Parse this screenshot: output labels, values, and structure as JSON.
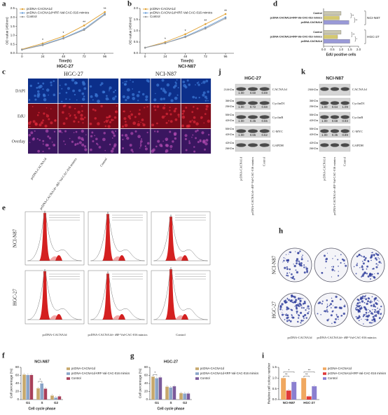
{
  "chart_data": [
    {
      "panel_label": "a",
      "type": "line",
      "title": "HGC-27",
      "x_label": "Time(h)",
      "y_label": "OD value (450nm)",
      "x": [
        0,
        24,
        48,
        72,
        96
      ],
      "xlim": [
        -6,
        106
      ],
      "xticks": [
        0,
        24,
        48,
        72,
        96
      ],
      "ylim": [
        0,
        2.5
      ],
      "yticks": [
        {
          "value": 0,
          "label": "0.0"
        },
        {
          "value": 0.5,
          "label": "0.5"
        },
        {
          "value": 1,
          "label": "1.0"
        },
        {
          "value": 1.5,
          "label": "1.5"
        },
        {
          "value": 2,
          "label": "2.0"
        },
        {
          "value": 2.5,
          "label": "2.5"
        }
      ],
      "series": [
        {
          "name": "pcDNA-CACNA1d",
          "color": "#e0a030",
          "values": [
            0.22,
            0.55,
            0.95,
            1.55,
            2.3
          ]
        },
        {
          "name": "pcDNA-CACNA1d+tRF-Val-CAC-016 mimics",
          "color": "#6a9fd8",
          "values": [
            0.2,
            0.48,
            0.85,
            1.35,
            2.2
          ]
        },
        {
          "name": "Control",
          "color": "#9a9a9a",
          "values": [
            0.2,
            0.45,
            0.82,
            1.3,
            2.15
          ]
        }
      ],
      "annotations": [
        {
          "x": 24,
          "text": "*"
        },
        {
          "x": 48,
          "text": "*"
        },
        {
          "x": 72,
          "text": "**"
        },
        {
          "x": 96,
          "text": "**"
        }
      ]
    },
    {
      "panel_label": "b",
      "type": "line",
      "title": "NCI-N87",
      "x_label": "Time(h)",
      "y_label": "OD value (450nm)",
      "x": [
        0,
        24,
        48,
        72,
        96
      ],
      "xlim": [
        -6,
        106
      ],
      "xticks": [
        0,
        24,
        48,
        72,
        96
      ],
      "ylim": [
        0,
        2
      ],
      "yticks": [
        {
          "value": 0,
          "label": "0.0"
        },
        {
          "value": 0.5,
          "label": "0.5"
        },
        {
          "value": 1,
          "label": "1.0"
        },
        {
          "value": 1.5,
          "label": "1.5"
        },
        {
          "value": 2,
          "label": "2.0"
        }
      ],
      "series": [
        {
          "name": "pcDNA-CACNA1d",
          "color": "#e0a030",
          "values": [
            0.25,
            0.5,
            0.85,
            1.3,
            1.75
          ]
        },
        {
          "name": "pcDNA-CACNA1d+tRF-Val-CAC-016 mimics",
          "color": "#6a9fd8",
          "values": [
            0.25,
            0.45,
            0.75,
            1.15,
            1.6
          ]
        },
        {
          "name": "Control",
          "color": "#9a9a9a",
          "values": [
            0.25,
            0.45,
            0.72,
            1.1,
            1.55
          ]
        }
      ],
      "annotations": [
        {
          "x": 24,
          "text": "*"
        },
        {
          "x": 48,
          "text": "*"
        },
        {
          "x": 72,
          "text": "**"
        },
        {
          "x": 96,
          "text": "**"
        }
      ]
    },
    {
      "panel_label": "d",
      "type": "hbar",
      "x_label": "EdU positive cells",
      "categories": [
        "Control",
        "pcDNA-CACNA1d+tRF-Val-CAC-016 mimics",
        "pcDNA-CACNA1d"
      ],
      "colors": [
        "#c9c7b0",
        "#d4c870",
        "#9a9ad8"
      ],
      "groups": [
        {
          "name": "NCI-N87",
          "values": [
            1.0,
            0.9,
            1.45
          ],
          "annotations": [
            "**",
            "**"
          ]
        },
        {
          "name": "HGC-27",
          "values": [
            1.0,
            0.8,
            1.5
          ],
          "annotations": [
            "**",
            "*"
          ]
        }
      ],
      "xlim": [
        0,
        2
      ],
      "xticks": [
        {
          "value": 0,
          "label": "0.0"
        },
        {
          "value": 0.5,
          "label": "0.5"
        },
        {
          "value": 1,
          "label": "1.0"
        },
        {
          "value": 1.5,
          "label": "1.5"
        },
        {
          "value": 2,
          "label": "2.0"
        }
      ]
    },
    {
      "panel_label": "f",
      "type": "grouped_bar",
      "title": "NCI-N87",
      "x_label": "Cell cycle phase",
      "y_label": "Cell percentage (%)",
      "categories": [
        "G1",
        "S",
        "G2"
      ],
      "series": [
        {
          "name": "pcDNA-CACNA1d",
          "color": "#c7a86c",
          "values": [
            62,
            28,
            10
          ]
        },
        {
          "name": "pcDNA-CACNA1d+tRF-Val-CAC-016 mimics",
          "color": "#8aa5c8",
          "values": [
            61,
            40,
            5
          ]
        },
        {
          "name": "Control",
          "color": "#a8405a",
          "values": [
            61,
            27,
            8
          ]
        }
      ],
      "ylim": [
        0,
        80
      ],
      "yticks": [
        0,
        20,
        40,
        60,
        80
      ],
      "annotations": [
        {
          "category": "S",
          "text": "*"
        }
      ]
    },
    {
      "panel_label": "g",
      "type": "grouped_bar",
      "title": "HGC-27",
      "x_label": "Cell cycle phase",
      "y_label": "Cell percentage (%)",
      "categories": [
        "G1",
        "S",
        "G2"
      ],
      "series": [
        {
          "name": "pcDNA-CACNA1d",
          "color": "#c7a86c",
          "values": [
            57,
            32,
            16
          ]
        },
        {
          "name": "pcDNA-CACNA1d+tRF-Val-CAC-016 mimics",
          "color": "#8aa5c8",
          "values": [
            53,
            30,
            15
          ]
        },
        {
          "name": "Control",
          "color": "#7a5a9a",
          "values": [
            55,
            33,
            15
          ]
        }
      ],
      "ylim": [
        0,
        80
      ],
      "yticks": [
        0,
        20,
        40,
        60,
        80
      ],
      "annotations": [
        {
          "category": "G1",
          "text": "*"
        }
      ]
    },
    {
      "panel_label": "i",
      "type": "grouped_bar",
      "y_label": "Relative cell colony number",
      "categories": [
        "NCI-N87",
        "HGC-27"
      ],
      "series": [
        {
          "name": "pcDNA-CACNA1d",
          "color": "#f0a860",
          "values": [
            1.0,
            1.0
          ]
        },
        {
          "name": "pcDNA-CACNA1d+tRF-Val-CAC-016 mimics",
          "color": "#e03a3a",
          "values": [
            0.42,
            0.15
          ]
        },
        {
          "name": "Control",
          "color": "#8a7fd0",
          "values": [
            0.82,
            0.62
          ]
        }
      ],
      "ylim": [
        0,
        1.5
      ],
      "yticks": [
        {
          "value": 0,
          "label": "0.0"
        },
        {
          "value": 0.5,
          "label": "0.5"
        },
        {
          "value": 1,
          "label": "1.0"
        },
        {
          "value": 1.5,
          "label": "1.5"
        }
      ],
      "annotations": [
        {
          "category": "NCI-N87",
          "text": "**"
        },
        {
          "category": "NCI-N87",
          "text": "*"
        },
        {
          "category": "HGC-27",
          "text": "**"
        },
        {
          "category": "HGC-27",
          "text": "**"
        }
      ]
    }
  ],
  "panel_c": {
    "label": "c",
    "cell_lines": [
      "HGC-27",
      "NCI-N87"
    ],
    "stains": [
      "DAPI",
      "EdU",
      "Overlay"
    ],
    "groups": [
      "pcDNA-CACNA1d",
      "pcDNA-CACNA1d+ tRF-Val-CAC-016 mimics",
      "Control"
    ]
  },
  "panel_j": {
    "label": "j",
    "title": "HGC-27",
    "rows": [
      {
        "protein": "CACNA1d",
        "sizes": [
          "210KDa"
        ],
        "quant": [
          "1.00",
          "0.60",
          "0.69"
        ]
      },
      {
        "protein": "CyclinD1",
        "sizes": [
          "36KDa",
          "25KDa"
        ],
        "quant": [
          "1.00",
          "0.72",
          "0.68"
        ]
      },
      {
        "protein": "CyclinB",
        "sizes": [
          "55KDa",
          "42KDa"
        ],
        "quant": [
          "1.00",
          "0.45",
          "0.55"
        ]
      },
      {
        "protein": "C-MYC",
        "sizes": [
          "55KDa",
          "42KDa"
        ],
        "quant": [
          "1.00",
          "0.65",
          "0.62"
        ]
      },
      {
        "protein": "GAPDH",
        "sizes": [
          "42KDa",
          "26KDa"
        ]
      }
    ],
    "groups": [
      "pcDNA-CACNA1d",
      "pcDNA-CACNA1d+ tRF-Val-CAC-016 mimics",
      "Control"
    ]
  },
  "panel_k": {
    "label": "k",
    "title": "NCI-N87",
    "rows": [
      {
        "protein": "CACNA1d",
        "sizes": [
          "250KDa"
        ]
      },
      {
        "protein": "CyclinD1",
        "sizes": [
          "36KDa",
          "25KDa"
        ],
        "quant": [
          "1.00",
          "0.64",
          "1.09"
        ]
      },
      {
        "protein": "CyclinB",
        "sizes": [
          "55KDa",
          "42KDa"
        ],
        "quant": [
          "1.00",
          "0.68",
          "0.93"
        ]
      },
      {
        "protein": "C-MYC",
        "sizes": [
          "55KDa",
          "42KDa"
        ],
        "quant": [
          "1.00",
          "0.35",
          "0.89"
        ]
      },
      {
        "protein": "GAPDH",
        "sizes": [
          "42KDa",
          "26KDa"
        ]
      }
    ],
    "groups": [
      "pcDNA-CACNA1d",
      "pcDNA-CACNA1d+ tRF-Val-CAC-016 mimics",
      "Control"
    ]
  },
  "panel_e": {
    "label": "e",
    "cell_lines": [
      "NCI-N87",
      "HGC-27"
    ],
    "groups": [
      "pcDNA-CACNA1d",
      "pcDNA-CACNA1d+ tRF-Val-CAC-016 mimics",
      "Control"
    ]
  },
  "panel_h": {
    "label": "h",
    "cell_lines": [
      "NCI-N87",
      "HGC-27"
    ],
    "groups": [
      "pcDNA-CACNA1d",
      "pcDNA-CACNA1d+ tRF-Val-CAC-016 mimics"
    ]
  }
}
